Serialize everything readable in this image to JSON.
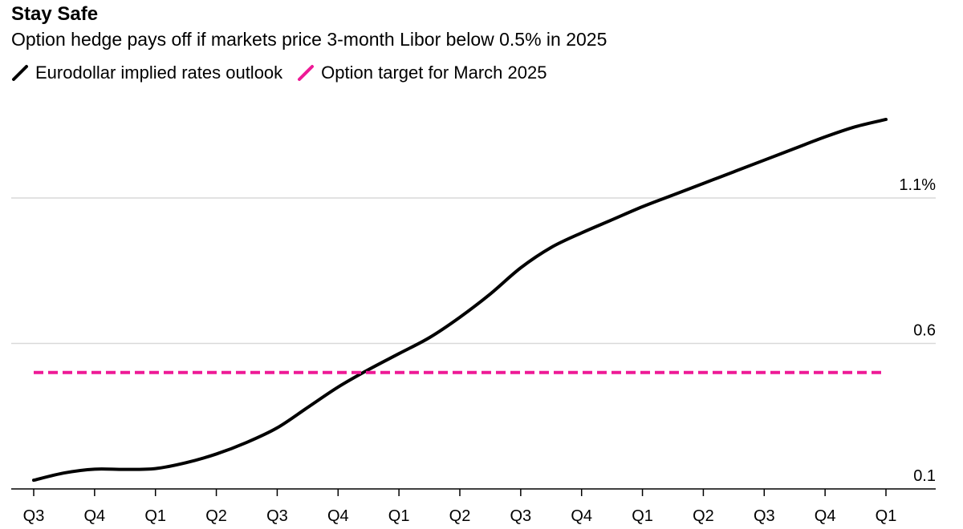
{
  "title": "Stay Safe",
  "subtitle": "Option hedge pays off if markets price 3-month Libor below 0.5% in 2025",
  "legend": [
    {
      "label": "Eurodollar implied rates outlook",
      "color": "#000000"
    },
    {
      "label": "Option target for March 2025",
      "color": "#ee1a96"
    }
  ],
  "chart_data": {
    "type": "line",
    "x_tick_labels": [
      "Q3",
      "Q4",
      "Q1",
      "Q2",
      "Q3",
      "Q4",
      "Q1",
      "Q2",
      "Q3",
      "Q4",
      "Q1",
      "Q2",
      "Q3",
      "Q4",
      "Q1"
    ],
    "y_tick_labels": [
      "0.1",
      "0.6",
      "1.1%"
    ],
    "y_tick_values": [
      0.1,
      0.6,
      1.1
    ],
    "ylim": [
      0.1,
      1.5
    ],
    "grid": true,
    "legend_position": "top-left",
    "series": [
      {
        "name": "Eurodollar implied rates outlook",
        "color": "#000000",
        "style": "solid",
        "x": [
          0.0,
          0.5,
          1.0,
          1.5,
          2.0,
          2.5,
          3.0,
          3.5,
          4.0,
          4.5,
          5.0,
          5.5,
          6.0,
          6.5,
          7.0,
          7.5,
          8.0,
          8.5,
          9.0,
          9.5,
          10.0,
          10.5,
          11.0,
          11.5,
          12.0,
          12.5,
          13.0,
          13.5,
          14.0
        ],
        "y": [
          0.13,
          0.155,
          0.168,
          0.167,
          0.17,
          0.19,
          0.22,
          0.26,
          0.31,
          0.38,
          0.45,
          0.51,
          0.565,
          0.62,
          0.69,
          0.77,
          0.86,
          0.93,
          0.98,
          1.025,
          1.07,
          1.11,
          1.15,
          1.19,
          1.23,
          1.27,
          1.31,
          1.345,
          1.37
        ]
      },
      {
        "name": "Option target for March 2025",
        "color": "#ee1a96",
        "style": "dashed",
        "x": [
          0,
          14
        ],
        "y": [
          0.5,
          0.5
        ]
      }
    ]
  }
}
